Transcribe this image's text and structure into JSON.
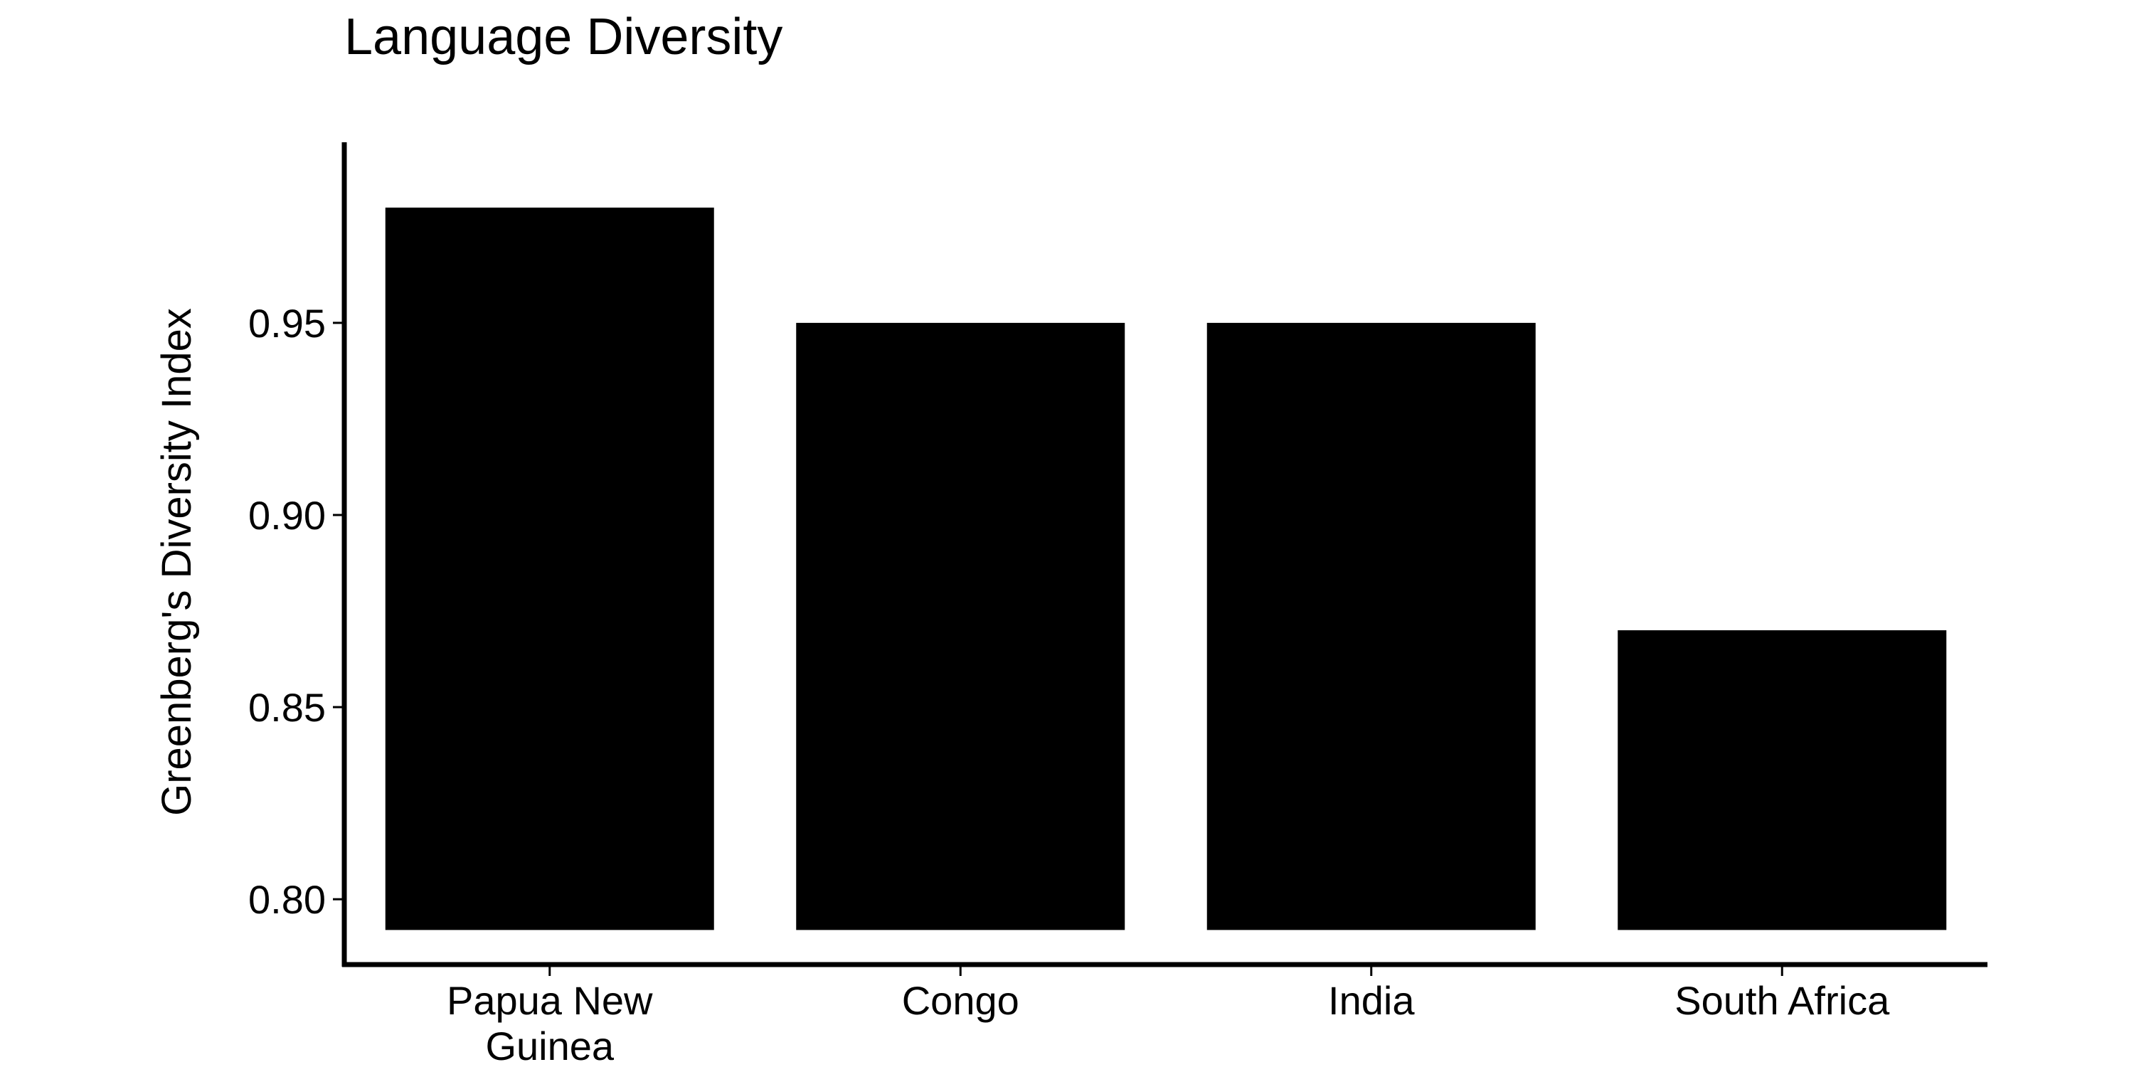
{
  "chart_data": {
    "type": "bar",
    "title": "Language Diversity",
    "xlabel": "",
    "ylabel": "Greenberg's Diversity Index",
    "categories": [
      "Papua New Guinea",
      "Congo",
      "India",
      "South Africa"
    ],
    "category_label_lines": [
      [
        "Papua New",
        "Guinea"
      ],
      [
        "Congo"
      ],
      [
        "India"
      ],
      [
        "South Africa"
      ]
    ],
    "values": [
      0.98,
      0.95,
      0.95,
      0.87
    ],
    "baseline": 0.792,
    "ylim": [
      0.783,
      0.997
    ],
    "yticks": [
      0.8,
      0.85,
      0.9,
      0.95
    ],
    "ytick_labels": [
      "0.80",
      "0.85",
      "0.90",
      "0.95"
    ],
    "grid": false,
    "legend": "none",
    "bar_color": "#000000",
    "axis_color": "#000000"
  }
}
